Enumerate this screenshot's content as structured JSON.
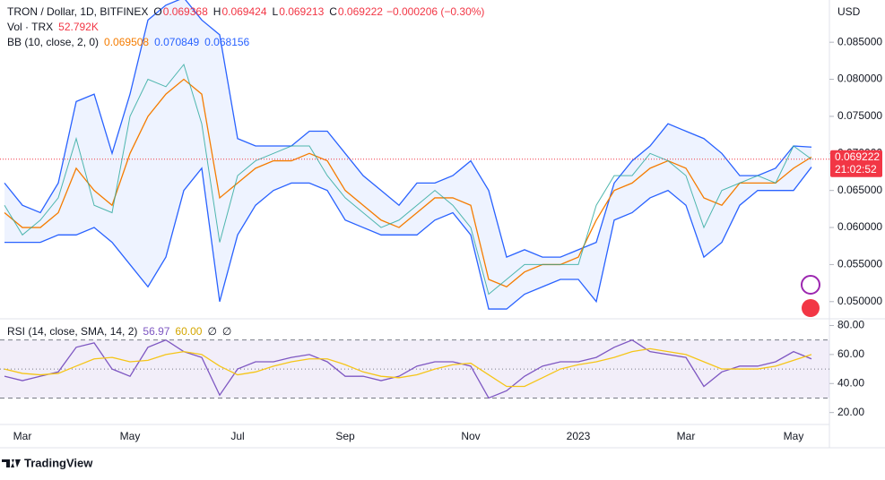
{
  "chart_data": [
    {
      "type": "line",
      "legend": {
        "title": "TRON / Dollar, 1D, BITFINEX",
        "ohlc": [
          {
            "label": "O",
            "value": "0.069368"
          },
          {
            "label": "H",
            "value": "0.069424"
          },
          {
            "label": "L",
            "value": "0.069213"
          },
          {
            "label": "C",
            "value": "0.069222"
          }
        ],
        "change": "−0.000206 (−0.30%)",
        "volume_label": "Vol · TRX",
        "volume_value": "52.792K",
        "bb_label": "BB (10, close, 2, 0)",
        "bb_values": [
          "0.069508",
          "0.070849",
          "0.068156"
        ]
      },
      "currency": "USD",
      "last_price": {
        "value": 0.069222,
        "label": "0.069222"
      },
      "countdown": "21:02:52",
      "categories": [
        null,
        "Mar",
        null,
        null,
        null,
        null,
        null,
        "May",
        null,
        null,
        null,
        null,
        null,
        "Jul",
        null,
        null,
        null,
        null,
        null,
        "Sep",
        null,
        null,
        null,
        null,
        null,
        null,
        "Nov",
        null,
        null,
        null,
        null,
        null,
        "2023",
        null,
        null,
        null,
        null,
        null,
        "Mar",
        null,
        null,
        null,
        null,
        null,
        "May",
        null
      ],
      "series": [
        {
          "color": "#2962ff",
          "values": [
            0.066,
            0.063,
            0.062,
            0.066,
            0.077,
            0.078,
            0.07,
            0.078,
            0.088,
            0.09,
            0.091,
            0.088,
            0.086,
            0.072,
            0.071,
            0.071,
            0.071,
            0.073,
            0.073,
            0.07,
            0.067,
            0.065,
            0.063,
            0.066,
            0.066,
            0.067,
            0.069,
            0.065,
            0.056,
            0.057,
            0.056,
            0.056,
            0.057,
            0.058,
            0.066,
            0.069,
            0.071,
            0.074,
            0.073,
            0.072,
            0.07,
            0.067,
            0.067,
            0.068,
            0.071,
            0.070849
          ]
        },
        {
          "color": "#f57c00",
          "values": [
            0.062,
            0.06,
            0.06,
            0.062,
            0.068,
            0.065,
            0.063,
            0.07,
            0.075,
            0.078,
            0.08,
            0.078,
            0.064,
            0.066,
            0.068,
            0.069,
            0.069,
            0.07,
            0.069,
            0.065,
            0.063,
            0.061,
            0.06,
            0.062,
            0.064,
            0.064,
            0.063,
            0.053,
            0.052,
            0.054,
            0.055,
            0.055,
            0.056,
            0.061,
            0.065,
            0.066,
            0.068,
            0.069,
            0.068,
            0.064,
            0.063,
            0.066,
            0.066,
            0.066,
            0.068,
            0.069508
          ]
        },
        {
          "color": "#2962ff",
          "values": [
            0.058,
            0.058,
            0.058,
            0.059,
            0.059,
            0.06,
            0.058,
            0.055,
            0.052,
            0.056,
            0.065,
            0.068,
            0.05,
            0.059,
            0.063,
            0.065,
            0.066,
            0.066,
            0.065,
            0.061,
            0.06,
            0.059,
            0.059,
            0.059,
            0.061,
            0.062,
            0.059,
            0.049,
            0.049,
            0.051,
            0.052,
            0.053,
            0.053,
            0.05,
            0.061,
            0.062,
            0.064,
            0.065,
            0.063,
            0.056,
            0.058,
            0.063,
            0.065,
            0.065,
            0.065,
            0.068156
          ]
        },
        {
          "color": "#26a69a",
          "values": [
            0.063,
            0.059,
            0.061,
            0.064,
            0.072,
            0.063,
            0.062,
            0.075,
            0.08,
            0.079,
            0.082,
            0.074,
            0.058,
            0.067,
            0.069,
            0.07,
            0.071,
            0.071,
            0.067,
            0.064,
            0.062,
            0.06,
            0.061,
            0.063,
            0.065,
            0.063,
            0.06,
            0.051,
            0.053,
            0.055,
            0.055,
            0.055,
            0.055,
            0.063,
            0.067,
            0.067,
            0.07,
            0.069,
            0.067,
            0.06,
            0.065,
            0.066,
            0.067,
            0.066,
            0.071,
            0.069222
          ]
        }
      ],
      "ylim": [
        0.0478,
        0.0907
      ],
      "yticks": [
        {
          "value": 0.05,
          "label": "0.050000"
        },
        {
          "value": 0.055,
          "label": "0.055000"
        },
        {
          "value": 0.06,
          "label": "0.060000"
        },
        {
          "value": 0.065,
          "label": "0.065000"
        },
        {
          "value": 0.07,
          "label": "0.070000"
        },
        {
          "value": 0.075,
          "label": "0.075000"
        },
        {
          "value": 0.08,
          "label": "0.080000"
        },
        {
          "value": 0.085,
          "label": "0.085000"
        }
      ],
      "band_fill": "#2962ff"
    },
    {
      "type": "line",
      "legend": {
        "title": "RSI (14, close, SMA, 14, 2)",
        "values": [
          "56.97",
          "60.00",
          "∅",
          "∅"
        ]
      },
      "series": [
        {
          "color": "#7e57c2",
          "values": [
            45,
            42,
            45,
            48,
            65,
            68,
            50,
            45,
            65,
            70,
            62,
            58,
            32,
            50,
            55,
            55,
            58,
            60,
            55,
            45,
            45,
            42,
            45,
            52,
            55,
            55,
            52,
            30,
            35,
            45,
            52,
            55,
            55,
            58,
            65,
            70,
            62,
            60,
            58,
            38,
            48,
            52,
            52,
            55,
            62,
            56.97
          ]
        },
        {
          "color": "#f5c518",
          "values": [
            50,
            47,
            46,
            47,
            52,
            57,
            58,
            55,
            56,
            60,
            62,
            60,
            52,
            46,
            48,
            52,
            55,
            57,
            57,
            53,
            48,
            45,
            44,
            46,
            50,
            53,
            54,
            46,
            38,
            38,
            44,
            50,
            53,
            55,
            58,
            62,
            64,
            62,
            60,
            55,
            50,
            50,
            50,
            52,
            56,
            60
          ]
        }
      ],
      "levels": [
        30,
        50,
        70
      ],
      "ylim": [
        13,
        84
      ],
      "yticks": [
        {
          "value": 20,
          "label": "20.00"
        },
        {
          "value": 40,
          "label": "40.00"
        },
        {
          "value": 60,
          "label": "60.00"
        },
        {
          "value": 80,
          "label": "80.00"
        }
      ]
    }
  ],
  "brand": "TradingView"
}
